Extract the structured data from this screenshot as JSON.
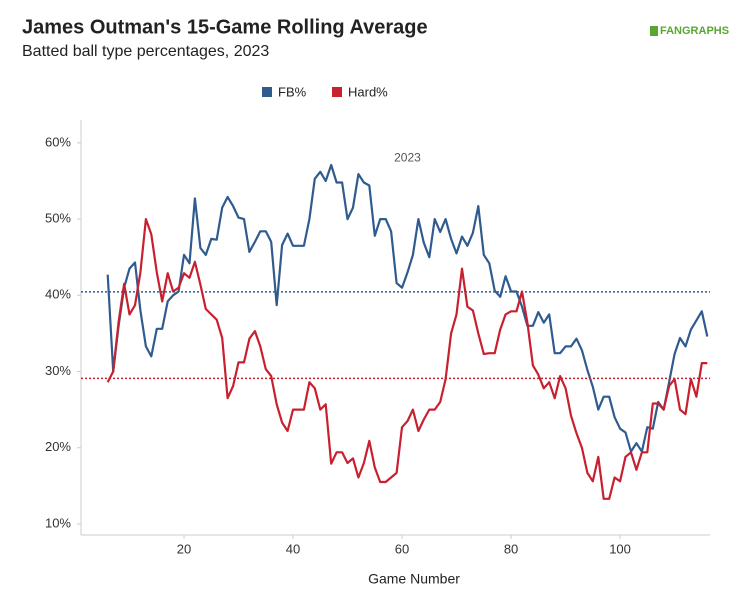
{
  "chart_data": {
    "type": "line",
    "title": "James Outman's 15-Game Rolling Average",
    "subtitle": "Batted ball type percentages, 2023",
    "logo": "FANGRAPHS",
    "annotation": {
      "text": "2023",
      "x": 61,
      "y": 58
    },
    "x_label": "Game Number",
    "x": [
      6,
      7,
      8,
      9,
      10,
      11,
      12,
      13,
      14,
      15,
      16,
      17,
      18,
      19,
      20,
      21,
      22,
      23,
      24,
      25,
      26,
      27,
      28,
      29,
      30,
      31,
      32,
      33,
      34,
      35,
      36,
      37,
      38,
      39,
      40,
      41,
      42,
      43,
      44,
      45,
      46,
      47,
      48,
      49,
      50,
      51,
      52,
      53,
      54,
      55,
      56,
      57,
      58,
      59,
      60,
      61,
      62,
      63,
      64,
      65,
      66,
      67,
      68,
      69,
      70,
      71,
      72,
      73,
      74,
      75,
      76,
      77,
      78,
      79,
      80,
      81,
      82,
      83,
      84,
      85,
      86,
      87,
      88,
      89,
      90,
      91,
      92,
      93,
      94,
      95,
      96,
      97,
      98,
      99,
      100,
      101,
      102,
      103,
      104,
      105,
      106,
      107,
      108,
      109,
      110,
      111,
      112,
      113,
      114,
      115,
      116
    ],
    "series": [
      {
        "name": "FB%",
        "color": "#2f5b8f",
        "average": 40.45,
        "values": [
          42.7,
          30,
          36,
          41,
          43.5,
          44.3,
          38,
          33.3,
          32,
          35.6,
          35.6,
          39.2,
          40,
          40.5,
          45.3,
          44.2,
          52.7,
          46.2,
          45.3,
          47.4,
          47.3,
          51.5,
          52.9,
          51.7,
          50.2,
          50,
          45.7,
          47,
          48.4,
          48.4,
          47,
          38.7,
          46.6,
          48.1,
          46.5,
          46.5,
          46.5,
          50,
          55.3,
          56.2,
          55,
          57.1,
          54.8,
          54.8,
          50,
          51.5,
          55.9,
          54.8,
          54.4,
          47.8,
          50,
          50,
          48.4,
          41.6,
          41,
          43,
          45.3,
          50,
          46.9,
          45,
          50,
          48.3,
          50,
          47.4,
          45.5,
          47.7,
          46.5,
          48.2,
          51.7,
          45.3,
          44.2,
          40.6,
          39.8,
          42.5,
          40.5,
          40.5,
          38.5,
          36,
          36,
          37.8,
          36.4,
          37.5,
          32.4,
          32.4,
          33.3,
          33.3,
          34.3,
          32.8,
          30.2,
          28,
          25,
          26.7,
          26.7,
          24,
          22.5,
          22,
          19.5,
          20.6,
          19.5,
          22.7,
          22.5,
          26,
          25,
          28.6,
          32.3,
          34.4,
          33.3,
          35.5,
          36.7,
          37.9,
          34.6
        ]
      },
      {
        "name": "Hard%",
        "color": "#c8202f",
        "average": 29.1,
        "values": [
          28.6,
          30,
          36.5,
          41.5,
          37.5,
          38.7,
          43,
          50,
          48,
          43,
          39.2,
          42.9,
          40.5,
          41,
          42.9,
          42.3,
          44.4,
          41.4,
          38.2,
          37.5,
          36.8,
          34.4,
          26.5,
          28.1,
          31.2,
          31.2,
          34.3,
          35.3,
          33.3,
          30.3,
          29.4,
          25.7,
          23.3,
          22.2,
          25,
          25,
          25,
          28.6,
          27.8,
          25,
          25.7,
          17.9,
          19.4,
          19.4,
          18,
          18.6,
          16.1,
          18,
          20.9,
          17.4,
          15.5,
          15.5,
          16.1,
          16.7,
          22.7,
          23.5,
          25,
          22.2,
          23.7,
          25,
          25,
          26,
          29,
          35,
          37.5,
          43.5,
          38.5,
          38,
          35,
          32.3,
          32.4,
          32.4,
          35.5,
          37.5,
          37.9,
          37.9,
          40.5,
          36.4,
          30.8,
          29.6,
          27.8,
          28.6,
          26.5,
          29.4,
          27.8,
          24.2,
          21.9,
          20,
          16.7,
          15.6,
          18.8,
          13.3,
          13.3,
          16.1,
          15.6,
          18.8,
          19.4,
          17.1,
          19.4,
          19.4,
          25.8,
          25.8,
          25,
          28.1,
          29,
          25,
          24.4,
          29,
          26.7,
          31.1,
          31.1
        ]
      }
    ],
    "xlim": [
      1.1,
      116.5
    ],
    "xticks": [
      20,
      40,
      60,
      80,
      100
    ],
    "ylim": [
      8.55,
      63
    ],
    "yticks": [
      {
        "value": 10,
        "label": "10%"
      },
      {
        "value": 20,
        "label": "20%"
      },
      {
        "value": 30,
        "label": "30%"
      },
      {
        "value": 40,
        "label": "40%"
      },
      {
        "value": 50,
        "label": "50%"
      },
      {
        "value": 60,
        "label": "60%"
      }
    ],
    "grid": false
  }
}
